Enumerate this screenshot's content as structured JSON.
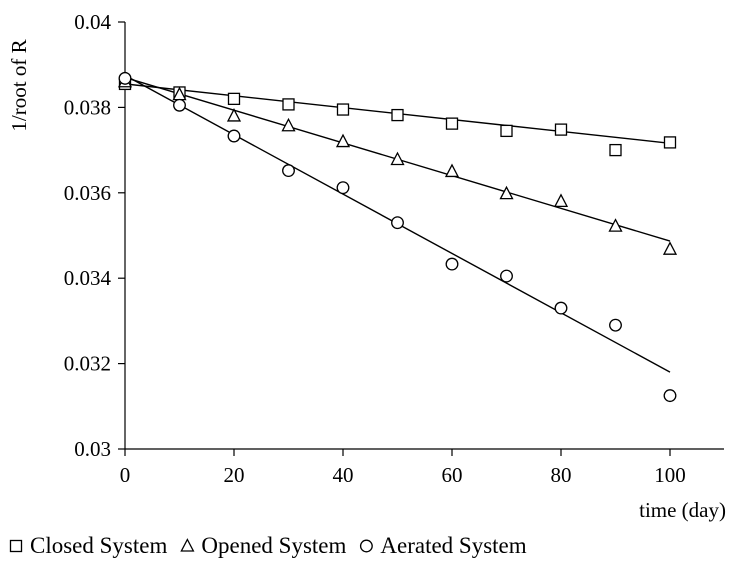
{
  "chart_data": {
    "type": "scatter",
    "title": "",
    "xlabel": "time (day)",
    "ylabel": "1/root of R",
    "xlim": [
      0,
      110
    ],
    "ylim": [
      0.03,
      0.04
    ],
    "xticks": [
      0,
      20,
      40,
      60,
      80,
      100
    ],
    "xtick_labels": [
      "0",
      "20",
      "40",
      "60",
      "80",
      "100"
    ],
    "yticks": [
      0.03,
      0.032,
      0.034,
      0.036,
      0.038,
      0.04
    ],
    "ytick_labels": [
      "0.03",
      "0.032",
      "0.034",
      "0.036",
      "0.038",
      "0.04"
    ],
    "grid": false,
    "legend_position": "bottom",
    "x": [
      0,
      10,
      20,
      30,
      40,
      50,
      60,
      70,
      80,
      90,
      100
    ],
    "series": [
      {
        "name": "Closed System",
        "marker": "square",
        "values": [
          0.03855,
          0.03835,
          0.0382,
          0.03807,
          0.03795,
          0.03782,
          0.03762,
          0.03745,
          0.03748,
          0.037,
          0.03718
        ],
        "trendline": [
          0.03855,
          0.03716
        ]
      },
      {
        "name": "Opened System",
        "marker": "triangle",
        "values": [
          0.0386,
          0.0383,
          0.0378,
          0.03757,
          0.0372,
          0.03678,
          0.0365,
          0.03598,
          0.0358,
          0.03522,
          0.03468
        ],
        "trendline": [
          0.0387,
          0.03487
        ]
      },
      {
        "name": "Aerated System",
        "marker": "circle",
        "values": [
          0.03868,
          0.03805,
          0.03733,
          0.03652,
          0.03612,
          0.0353,
          0.03433,
          0.03405,
          0.0333,
          0.0329,
          0.03125
        ],
        "trendline": [
          0.03875,
          0.0318
        ]
      }
    ]
  }
}
